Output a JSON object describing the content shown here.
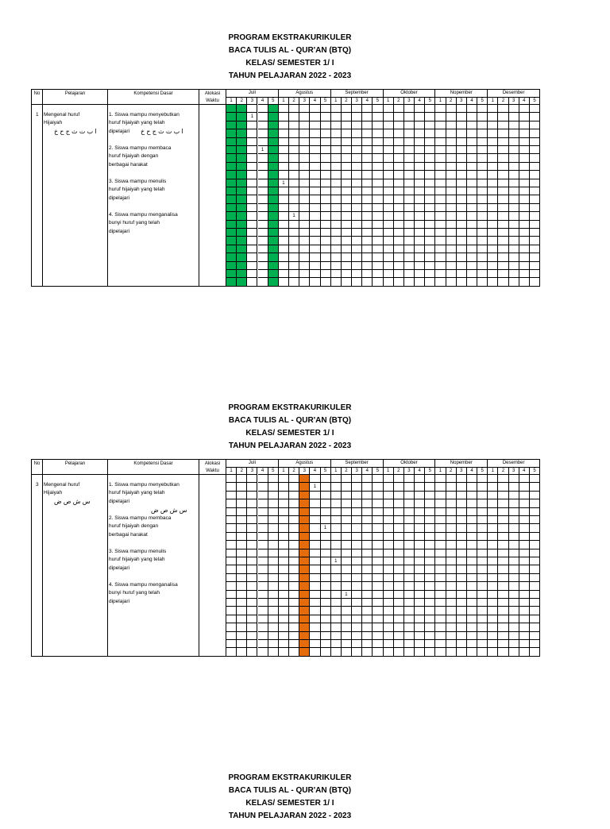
{
  "headers": {
    "no": "No",
    "pelajaran": "Pelajaran",
    "kompetensi": "Kompetensi Dasar",
    "alokasi": "Alokasi\nWaktu",
    "months": [
      "Juli",
      "Agustus",
      "September",
      "Oktober",
      "Nopember",
      "Desember"
    ],
    "weeks": [
      "1",
      "2",
      "3",
      "4",
      "5"
    ]
  },
  "titles": [
    "PROGRAM EKSTRAKURIKULER",
    "BACA TULIS AL - QUR'AN (BTQ)",
    "KELAS/ SEMESTER 1/ I",
    "TAHUN PELAJARAN 2022 - 2023"
  ],
  "colors": {
    "green": "#00b050",
    "orange": "#e46c0a"
  },
  "blocks": [
    {
      "no": "1",
      "pelajaran": "Mengenal huruf\nHijaiyah",
      "pelajaran_arabic": "ا ب ت ث ج ح خ",
      "kompetensi": [
        "1. Siswa mampu menyebutkan\nhuruf hijaiyah yang telah\ndipelajari",
        "2. Siswa mampu membaca\nhuruf hijaiyah dengan\nberbagai harakat",
        "3. Siswa mampu menulis\nhuruf hijaiyah yang telah\ndipelajari",
        "4. Siswa mampu menganalisa\nbunyi huruf yang telah\ndipelajari"
      ],
      "kompetensi_arabic": "ا ب ت ث ج ح خ",
      "highlight_color": "green",
      "highlight_columns": [
        {
          "month": "Juli",
          "week": 1
        },
        {
          "month": "Juli",
          "week": 2
        },
        {
          "month": "Juli",
          "week": 5
        }
      ],
      "marks": [
        {
          "row": 2,
          "month": "Juli",
          "week": 3,
          "value": "1"
        },
        {
          "row": 6,
          "month": "Juli",
          "week": 4,
          "value": "1"
        },
        {
          "row": 10,
          "month": "Agustus",
          "week": 1,
          "value": "1"
        },
        {
          "row": 14,
          "month": "Agustus",
          "week": 2,
          "value": "1"
        }
      ]
    },
    {
      "no": "3",
      "pelajaran": "Mengenal huruf\nHijaiyah",
      "pelajaran_arabic": "س ش ص ض",
      "kompetensi": [
        "1. Siswa mampu menyebutkan\nhuruf hijaiyah yang telah\ndipelajari",
        "2. Siswa mampu membaca\nhuruf hijaiyah dengan\nberbagai harakat",
        "3. Siswa mampu menulis\nhuruf hijaiyah yang telah\ndipelajari",
        "4. Siswa mampu menganalisa\nbunyi huruf yang telah\ndipelajari"
      ],
      "kompetensi_arabic": "س ش ص ض",
      "highlight_color": "orange",
      "highlight_columns": [
        {
          "month": "Agustus",
          "week": 3
        }
      ],
      "marks": [
        {
          "row": 2,
          "month": "Agustus",
          "week": 4,
          "value": "1"
        },
        {
          "row": 7,
          "month": "Agustus",
          "week": 5,
          "value": "1"
        },
        {
          "row": 11,
          "month": "September",
          "week": 1,
          "value": "1"
        },
        {
          "row": 15,
          "month": "September",
          "week": 2,
          "value": "1"
        }
      ]
    },
    {
      "titles_only": true
    }
  ]
}
